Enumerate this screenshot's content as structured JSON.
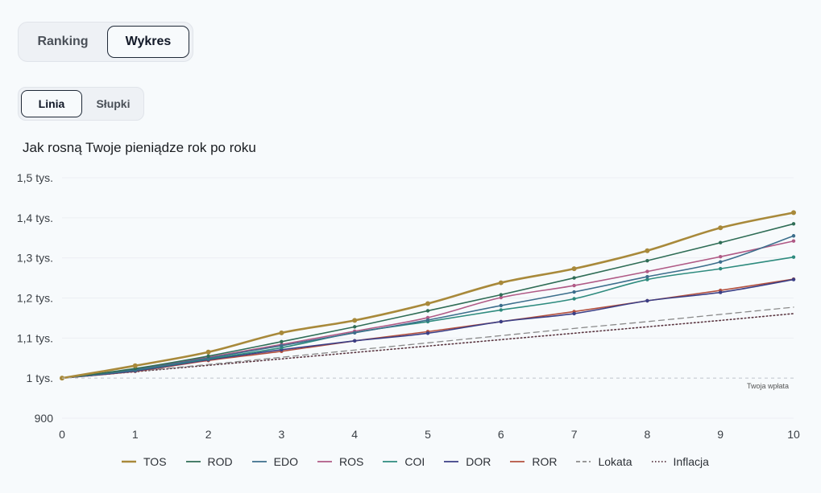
{
  "view_toggle": {
    "ranking_label": "Ranking",
    "chart_label": "Wykres",
    "active": "chart"
  },
  "chart_type_toggle": {
    "line_label": "Linia",
    "bars_label": "Słupki",
    "active": "line"
  },
  "colors": {
    "TOS": "#a8893a",
    "ROD": "#2f6d56",
    "EDO": "#3c6e8c",
    "ROS": "#b05a86",
    "COI": "#2e8b7e",
    "DOR": "#3b3f86",
    "ROR": "#b3503e",
    "Lokata": "#8a8a8a",
    "Inflacja": "#5a3540"
  },
  "chart_data": {
    "type": "line",
    "title": "Jak rosną Twoje pieniądze rok po roku",
    "xlabel": "",
    "ylabel": "",
    "x": [
      0,
      1,
      2,
      3,
      4,
      5,
      6,
      7,
      8,
      9,
      10
    ],
    "xlim": [
      0,
      10
    ],
    "ylim": [
      900,
      1500
    ],
    "y_ticks": [
      {
        "value": 900,
        "label": "900"
      },
      {
        "value": 1000,
        "label": "1 tys."
      },
      {
        "value": 1100,
        "label": "1,1 tys."
      },
      {
        "value": 1200,
        "label": "1,2 tys."
      },
      {
        "value": 1300,
        "label": "1,3 tys."
      },
      {
        "value": 1400,
        "label": "1,4 tys."
      },
      {
        "value": 1500,
        "label": "1,5 tys."
      }
    ],
    "grid": true,
    "legend_position": "bottom",
    "annotations": [
      {
        "text": "Twoja wpłata",
        "y": 1000
      }
    ],
    "series": [
      {
        "name": "TOS",
        "style": "solid-bold",
        "values": [
          1000,
          1031,
          1065,
          1113,
          1144,
          1186,
          1238,
          1273,
          1318,
          1375,
          1413
        ]
      },
      {
        "name": "ROD",
        "style": "solid",
        "values": [
          1000,
          1024,
          1055,
          1091,
          1128,
          1168,
          1208,
          1250,
          1293,
          1338,
          1385
        ]
      },
      {
        "name": "EDO",
        "style": "solid",
        "values": [
          1000,
          1021,
          1050,
          1081,
          1113,
          1145,
          1181,
          1215,
          1253,
          1290,
          1355
        ]
      },
      {
        "name": "ROS",
        "style": "solid",
        "values": [
          1000,
          1022,
          1052,
          1084,
          1117,
          1151,
          1201,
          1231,
          1266,
          1303,
          1342
        ]
      },
      {
        "name": "COI",
        "style": "solid",
        "values": [
          1000,
          1020,
          1048,
          1076,
          1114,
          1141,
          1170,
          1198,
          1246,
          1273,
          1302
        ]
      },
      {
        "name": "DOR",
        "style": "solid",
        "values": [
          1000,
          1018,
          1046,
          1071,
          1093,
          1112,
          1141,
          1161,
          1193,
          1214,
          1246
        ]
      },
      {
        "name": "ROR",
        "style": "solid",
        "values": [
          1000,
          1017,
          1044,
          1067,
          1093,
          1116,
          1141,
          1166,
          1193,
          1219,
          1247
        ]
      },
      {
        "name": "Lokata",
        "style": "dashed",
        "values": [
          1000,
          1017,
          1034,
          1052,
          1070,
          1088,
          1106,
          1124,
          1141,
          1159,
          1177
        ]
      },
      {
        "name": "Inflacja",
        "style": "dotted",
        "values": [
          1000,
          1016,
          1032,
          1048,
          1064,
          1080,
          1096,
          1112,
          1128,
          1144,
          1161
        ]
      }
    ]
  }
}
